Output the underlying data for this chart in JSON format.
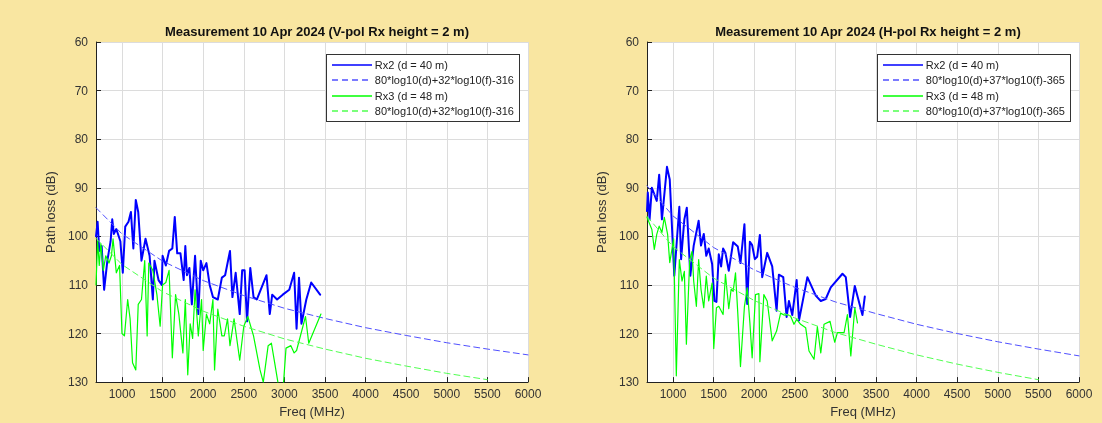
{
  "chart_data": [
    {
      "type": "line",
      "title": "Measurement 10 Apr 2024 (V-pol Rx height = 2 m)",
      "xlabel": "Freq (MHz)",
      "ylabel": "Path loss (dB)",
      "xlim": [
        680,
        6000
      ],
      "xticks": [
        1000,
        1500,
        2000,
        2500,
        3000,
        3500,
        4000,
        4500,
        5000,
        5500,
        6000
      ],
      "ylim": [
        130,
        60
      ],
      "yticks": [
        60,
        70,
        80,
        90,
        100,
        110,
        120,
        130
      ],
      "grid": true,
      "legend": "top right",
      "marker": "none",
      "series": [
        {
          "name": "Rx2 (d = 40 m)",
          "color": "#0000ff",
          "line_style": "solid",
          "x": [
            680,
            700,
            720,
            750,
            780,
            820,
            860,
            880,
            900,
            930,
            980,
            1010,
            1040,
            1080,
            1110,
            1140,
            1170,
            1200,
            1240,
            1290,
            1340,
            1380,
            1400,
            1450,
            1490,
            1500,
            1540,
            1580,
            1620,
            1650,
            1680,
            1720,
            1760,
            1780,
            1800,
            1830,
            1860,
            1900,
            1940,
            1970,
            2000,
            2040,
            2080,
            2120,
            2180,
            2230,
            2270,
            2330,
            2360,
            2400,
            2450,
            2480,
            2510,
            2540,
            2580,
            2620,
            2660,
            2720,
            2780,
            2820,
            2850,
            2910,
            2980,
            3060,
            3120,
            3150,
            3180,
            3210,
            3270,
            3330,
            3440
          ],
          "values": [
            100,
            97,
            103,
            102,
            111,
            105,
            101,
            96.5,
            99.5,
            98.5,
            101,
            107.5,
            98,
            97,
            95,
            102.5,
            92.5,
            95,
            105,
            100.5,
            104,
            113,
            105,
            109,
            110,
            104,
            106,
            103,
            102.5,
            96,
            103.5,
            103.5,
            109,
            102,
            108,
            106.5,
            114,
            104,
            116,
            105,
            107,
            105.5,
            110,
            112.5,
            113,
            108.5,
            108,
            103,
            112.5,
            107.5,
            116,
            107,
            107,
            117.5,
            106.5,
            112.5,
            113,
            110.5,
            108,
            116,
            112,
            113,
            112,
            111,
            107.5,
            119,
            108.5,
            118,
            113,
            109.5,
            112
          ]
        },
        {
          "name": "80*log10(d)+32*log10(f)-316",
          "color": "#5050ff",
          "line_style": "dashed",
          "x": [
            680,
            1000,
            1500,
            2000,
            2500,
            3000,
            3500,
            4000,
            4500,
            5000,
            5500,
            6000
          ],
          "values": [
            94.1,
            99.5,
            105.1,
            109.1,
            112.2,
            114.8,
            116.9,
            118.8,
            120.4,
            121.9,
            123.2,
            124.4
          ]
        },
        {
          "name": "Rx3 (d = 48 m)",
          "color": "#00ff00",
          "line_style": "solid",
          "x": [
            680,
            700,
            720,
            740,
            770,
            800,
            840,
            870,
            890,
            930,
            970,
            1000,
            1030,
            1070,
            1100,
            1130,
            1170,
            1200,
            1240,
            1280,
            1310,
            1330,
            1380,
            1430,
            1470,
            1500,
            1540,
            1580,
            1620,
            1660,
            1700,
            1750,
            1780,
            1810,
            1840,
            1870,
            1900,
            1940,
            1980,
            2000,
            2040,
            2080,
            2120,
            2140,
            2180,
            2230,
            2260,
            2300,
            2330,
            2380,
            2450,
            2500,
            2550,
            2620,
            2700,
            2740,
            2800,
            2840,
            2880,
            2920,
            2950,
            2990,
            3020,
            3080,
            3120,
            3150,
            3260,
            3300,
            3450
          ],
          "values": [
            110,
            101,
            106,
            101.5,
            107,
            104,
            105.5,
            104,
            100.5,
            107.5,
            106,
            120,
            120.5,
            113,
            117,
            126,
            127.5,
            114,
            113,
            105,
            120.5,
            105.5,
            107,
            112,
            118.5,
            110,
            109.5,
            107,
            125,
            112,
            116,
            124,
            113,
            128.5,
            118,
            121,
            111,
            120.5,
            113,
            123.5,
            116,
            118,
            113,
            127.5,
            115,
            120.5,
            120.5,
            117,
            122.5,
            117,
            125.5,
            118.5,
            116.5,
            120.5,
            127.5,
            130,
            122.5,
            122,
            126,
            130,
            null,
            130,
            123,
            122.5,
            124,
            123.5,
            116.5,
            122,
            116
          ]
        },
        {
          "name": "80*log10(d)+32*log10(f)-316",
          "color": "#50ff50",
          "line_style": "dashed",
          "x": [
            680,
            1000,
            1500,
            2000,
            2500,
            3000,
            3500,
            4000,
            4500,
            5000,
            5500
          ],
          "values": [
            100.4,
            105.8,
            111.4,
            115.4,
            118.5,
            121.1,
            123.2,
            125.1,
            126.7,
            128.2,
            129.5
          ]
        }
      ]
    },
    {
      "type": "line",
      "title": "Measurement 10 Apr 2024 (H-pol Rx height = 2 m)",
      "xlabel": "Freq (MHz)",
      "ylabel": "Path loss (dB)",
      "xlim": [
        680,
        6000
      ],
      "xticks": [
        1000,
        1500,
        2000,
        2500,
        3000,
        3500,
        4000,
        4500,
        5000,
        5500,
        6000
      ],
      "ylim": [
        130,
        60
      ],
      "yticks": [
        60,
        70,
        80,
        90,
        100,
        110,
        120,
        130
      ],
      "grid": true,
      "legend": "top right",
      "marker": "none",
      "series": [
        {
          "name": "Rx2 (d = 40 m)",
          "color": "#0000ff",
          "line_style": "solid",
          "x": [
            680,
            690,
            712,
            740,
            800,
            830,
            864,
            926,
            960,
            1016,
            1078,
            1100,
            1140,
            1170,
            1214,
            1255,
            1316,
            1345,
            1379,
            1410,
            1440,
            1482,
            1510,
            1535,
            1564,
            1593,
            1617,
            1646,
            1687,
            1741,
            1798,
            1831,
            1880,
            1914,
            1947,
            1975,
            2008,
            2037,
            2070,
            2099,
            2160,
            2222,
            2276,
            2304,
            2358,
            2399,
            2428,
            2469,
            2523,
            2552,
            2655,
            2758,
            2820,
            2881,
            2943,
            3087,
            3128,
            3181,
            3239,
            3333,
            3362
          ],
          "values": [
            94.8,
            91,
            96.5,
            90,
            92.7,
            87.3,
            96.5,
            85.7,
            88.3,
            108.1,
            93.9,
            104.7,
            96.5,
            94.1,
            108.1,
            101.9,
            96.8,
            101.9,
            99.5,
            104,
            102.5,
            105.7,
            113.3,
            113.5,
            103.7,
            106.2,
            102.5,
            103.4,
            107.1,
            101.2,
            102.1,
            105.5,
            97.5,
            113.9,
            101.1,
            101.8,
            104.7,
            104.2,
            99.7,
            108.4,
            103.4,
            106.2,
            115.3,
            107.9,
            108.4,
            116.6,
            113.3,
            116.2,
            109,
            117.3,
            108.4,
            112.2,
            113.3,
            112.9,
            110.5,
            107.7,
            108.4,
            116.6,
            110.2,
            116.2,
            112.4
          ]
        },
        {
          "name": "80*log10(d)+37*log10(f)-365",
          "color": "#5050ff",
          "line_style": "dashed",
          "x": [
            680,
            1000,
            1500,
            2000,
            2500,
            3000,
            3500,
            4000,
            4500,
            5000,
            5500,
            6000
          ],
          "values": [
            89.6,
            95.8,
            102.3,
            106.9,
            110.5,
            113.5,
            115.9,
            118.1,
            120,
            121.7,
            123.2,
            124.6
          ]
        },
        {
          "name": "Rx3 (d = 48 m)",
          "color": "#00ff00",
          "line_style": "solid",
          "x": [
            680,
            740,
            770,
            800,
            830,
            864,
            893,
            934,
            960,
            1008,
            1041,
            1078,
            1111,
            1140,
            1165,
            1206,
            1235,
            1255,
            1288,
            1316,
            1345,
            1379,
            1410,
            1440,
            1482,
            1502,
            1535,
            1564,
            1617,
            1646,
            1687,
            1716,
            1741,
            1770,
            1798,
            1831,
            1880,
            1914,
            1947,
            1975,
            2016,
            2058,
            2070,
            2119,
            2160,
            2222,
            2276,
            2325,
            2366,
            2407,
            2448,
            2490,
            2523,
            2572,
            2634,
            2675,
            2737,
            2778,
            2820,
            2860,
            2934,
            2992,
            3025,
            3107,
            3148,
            3190,
            3239,
            3272
          ],
          "values": [
            96.1,
            98.6,
            102.7,
            99.6,
            97.9,
            99.2,
            96.1,
            99.6,
            105.4,
            100.5,
            128.7,
            104.8,
            109.2,
            107.2,
            122.2,
            104.8,
            103.1,
            109.2,
            114.4,
            104.8,
            110.9,
            114.7,
            108.2,
            113.3,
            109.6,
            123.1,
            114.7,
            114.4,
            116.1,
            107.8,
            114.9,
            110.9,
            111.3,
            107.5,
            115.8,
            126.8,
            114.4,
            110.6,
            117.8,
            125,
            112,
            111.8,
            125.8,
            112,
            113.3,
            121.5,
            119.5,
            115.8,
            116.2,
            116.1,
            116.4,
            118.1,
            117.1,
            118.1,
            118.8,
            123.6,
            125.3,
            118.6,
            124,
            118.1,
            117.5,
            121.8,
            119.8,
            119.8,
            116.1,
            124.6,
            114.7,
            117.8
          ]
        },
        {
          "name": "80*log10(d)+37*log10(f)-365",
          "color": "#50ff50",
          "line_style": "dashed",
          "x": [
            680,
            1000,
            1500,
            2000,
            2500,
            3000,
            3500,
            4000,
            4500,
            5000,
            5500
          ],
          "values": [
            95.9,
            102.1,
            108.6,
            113.2,
            116.8,
            119.8,
            122.2,
            124.4,
            126.3,
            128,
            129.5
          ]
        }
      ]
    }
  ]
}
